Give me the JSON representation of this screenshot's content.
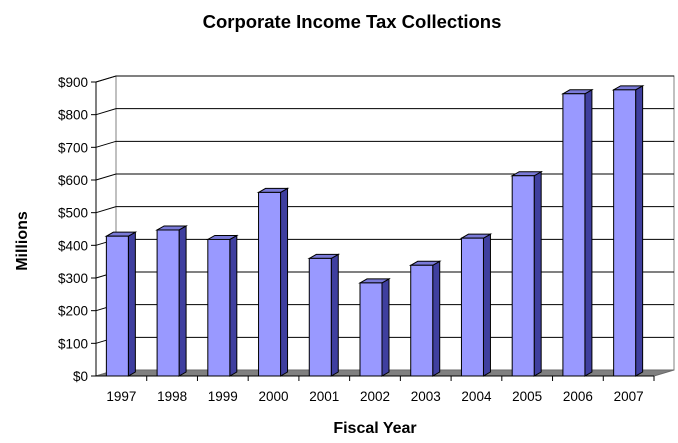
{
  "chart_data": {
    "type": "bar",
    "title": "Corporate Income Tax Collections",
    "xlabel": "Fiscal Year",
    "ylabel": "Millions",
    "categories": [
      "1997",
      "1998",
      "1999",
      "2000",
      "2001",
      "2002",
      "2003",
      "2004",
      "2005",
      "2006",
      "2007"
    ],
    "values": [
      428,
      447,
      418,
      562,
      360,
      285,
      339,
      422,
      613,
      864,
      876
    ],
    "ylim": [
      0,
      900
    ],
    "yticks": [
      0,
      100,
      200,
      300,
      400,
      500,
      600,
      700,
      800,
      900
    ],
    "ytick_labels": [
      "$0",
      "$100",
      "$200",
      "$300",
      "$400",
      "$500",
      "$600",
      "$700",
      "$800",
      "$900"
    ],
    "grid": true,
    "style": "3d-bar",
    "colors": {
      "bar_front": "#9999ff",
      "bar_side": "#3f3f9f",
      "bar_top": "#7a7ad8",
      "floor": "#808080",
      "gridline": "#000000"
    }
  }
}
